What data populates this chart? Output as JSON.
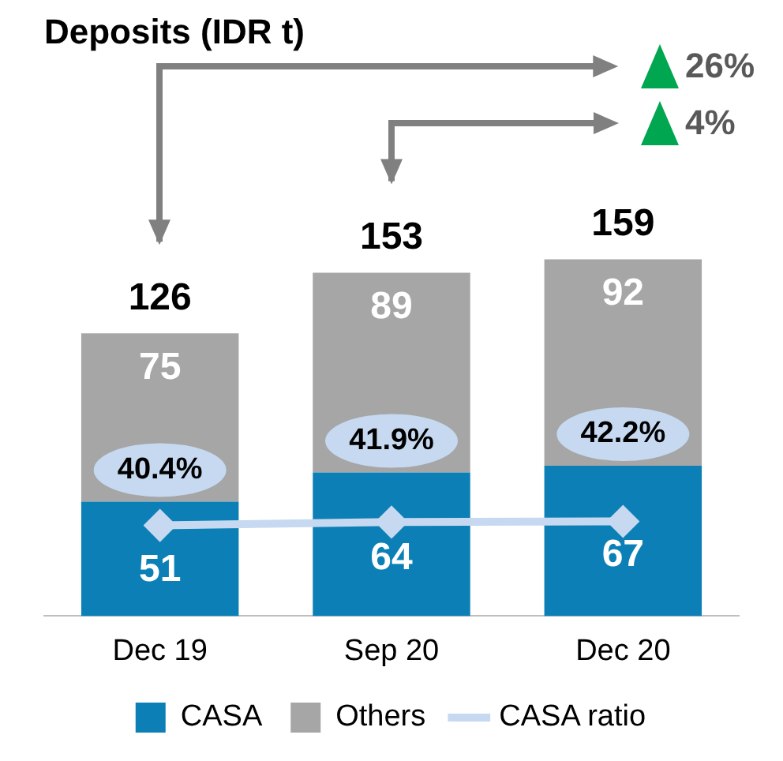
{
  "chart_data": {
    "type": "bar",
    "title": "Deposits (IDR t)",
    "categories": [
      "Dec 19",
      "Sep 20",
      "Dec 20"
    ],
    "stacked": true,
    "data_labels": true,
    "legend": "bottom",
    "grid": false,
    "series": [
      {
        "name": "CASA",
        "color": "#0c80b6",
        "values": [
          51,
          64,
          67
        ]
      },
      {
        "name": "Others",
        "color": "#a6a6a6",
        "values": [
          75,
          89,
          92
        ]
      },
      {
        "name": "CASA ratio",
        "type": "line",
        "color": "#c6d9f0",
        "marker": "diamond",
        "values": [
          40.4,
          41.9,
          42.2
        ],
        "value_labels": [
          "40.4%",
          "41.9%",
          "42.2%"
        ]
      }
    ],
    "totals": [
      "126",
      "153",
      "159"
    ],
    "annotations": [
      "26%",
      "4%"
    ]
  }
}
